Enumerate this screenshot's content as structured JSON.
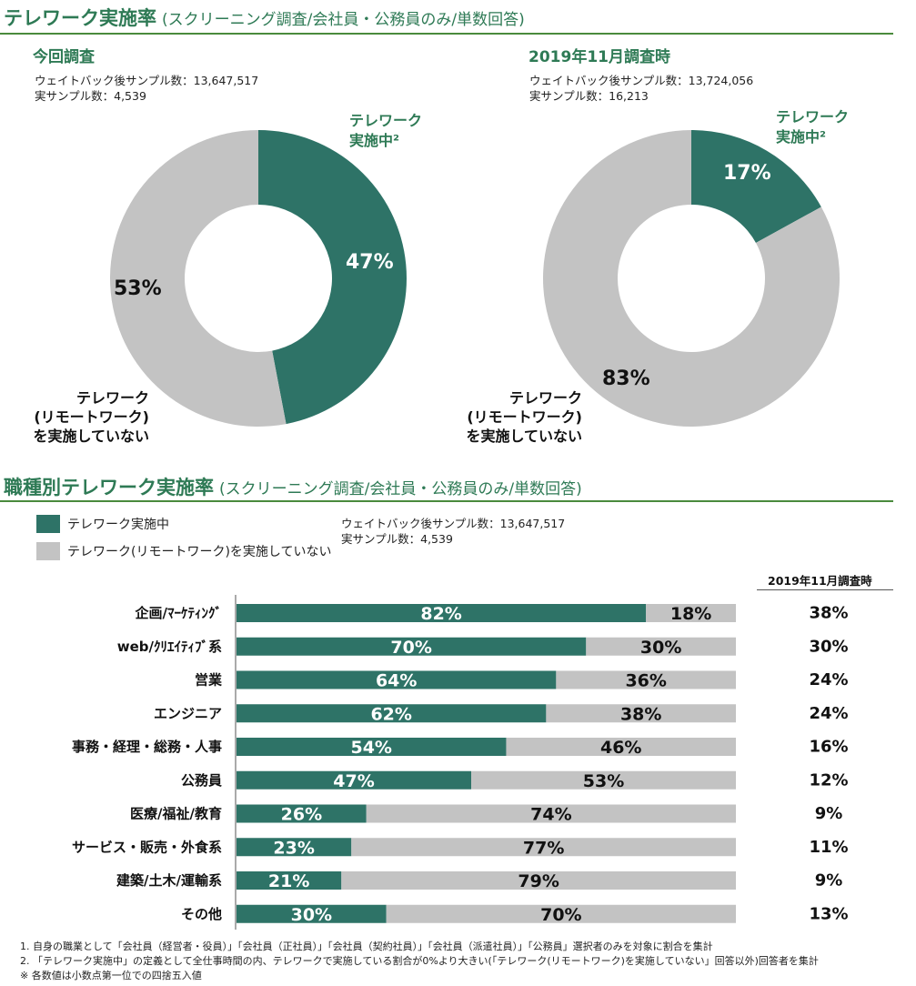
{
  "section1": {
    "title": "テレワーク実施率",
    "subtitle": "(スクリーニング調査/会社員・公務員のみ/単数回答)"
  },
  "section2": {
    "title": "職種別テレワーク実施率",
    "subtitle": "(スクリーニング調査/会社員・公務員のみ/単数回答)"
  },
  "donuts": [
    {
      "title": "今回調査",
      "sample_weighted": "ウェイトバック後サンプル数：13,647,517",
      "sample_actual": "実サンプル数：4,539",
      "tele_label_line1": "テレワーク",
      "tele_label_line2": "実施中²",
      "tele_pct": "47%",
      "not_pct": "53%",
      "not_label_line1": "テレワーク",
      "not_label_line2": "(リモートワーク)",
      "not_label_line3": "を実施していない"
    },
    {
      "title": "2019年11月調査時",
      "sample_weighted": "ウェイトバック後サンプル数：13,724,056",
      "sample_actual": "実サンプル数：16,213",
      "tele_label_line1": "テレワーク",
      "tele_label_line2": "実施中²",
      "tele_pct": "17%",
      "not_pct": "83%",
      "not_label_line1": "テレワーク",
      "not_label_line2": "(リモートワーク)",
      "not_label_line3": "を実施していない"
    }
  ],
  "legend": {
    "tele": "テレワーク実施中",
    "not": "テレワーク(リモートワーク)を実施していない",
    "sample_weighted": "ウェイトバック後サンプル数：13,647,517",
    "sample_actual": "実サンプル数：4,539"
  },
  "prev_header": "2019年11月調査時",
  "colors": {
    "tele": "#2e7367",
    "not": "#c3c3c3",
    "title": "#2e7a55"
  },
  "chart_data": [
    {
      "type": "pie",
      "title": "今回調査",
      "labels": [
        "テレワーク実施中",
        "テレワーク(リモートワーク)を実施していない"
      ],
      "values": [
        47,
        53
      ]
    },
    {
      "type": "pie",
      "title": "2019年11月調査時",
      "labels": [
        "テレワーク実施中",
        "テレワーク(リモートワーク)を実施していない"
      ],
      "values": [
        17,
        83
      ]
    },
    {
      "type": "bar",
      "orientation": "horizontal",
      "stacked": true,
      "title": "職種別テレワーク実施率",
      "categories": [
        "企画/ﾏｰｹﾃｨﾝｸﾞ",
        "web/ｸﾘｴｲﾃｨﾌﾞ系",
        "営業",
        "エンジニア",
        "事務・経理・総務・人事",
        "公務員",
        "医療/福祉/教育",
        "サービス・販売・外食系",
        "建築/土木/運輸系",
        "その他"
      ],
      "series": [
        {
          "name": "テレワーク実施中",
          "values": [
            82,
            70,
            64,
            62,
            54,
            47,
            26,
            23,
            21,
            30
          ]
        },
        {
          "name": "テレワーク(リモートワーク)を実施していない",
          "values": [
            18,
            30,
            36,
            38,
            46,
            53,
            74,
            77,
            79,
            70
          ]
        }
      ],
      "prev_label": "2019年11月調査時",
      "prev_values": [
        "38%",
        "30%",
        "24%",
        "24%",
        "16%",
        "12%",
        "9%",
        "11%",
        "9%",
        "13%"
      ]
    }
  ],
  "notes": [
    "1.  自身の職業として「会社員（経営者・役員）」「会社員（正社員）」「会社員（契約社員）」「会社員（派遣社員）」「公務員」選択者のみを対象に割合を集計",
    "2.  「テレワーク実施中」の定義として全仕事時間の内、テレワークで実施している割合が0%より大きい(「テレワーク(リモートワーク)を実施していない」回答以外)回答者を集計",
    "※ 各数値は小数点第一位での四捨五入値"
  ]
}
